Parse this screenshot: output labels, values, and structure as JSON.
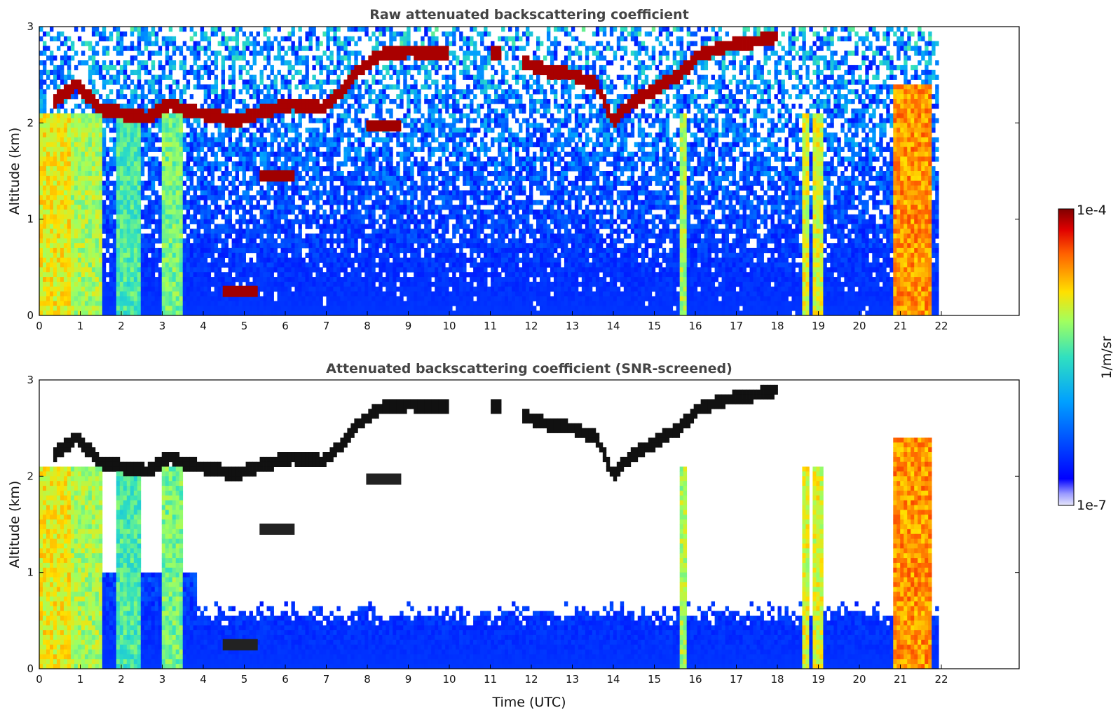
{
  "chart_data": [
    {
      "type": "heatmap",
      "title": "Raw attenuated backscattering coefficient",
      "xlabel": "",
      "ylabel": "Altitude (km)",
      "xlim": [
        0,
        24
      ],
      "ylim": [
        0,
        3
      ],
      "xticks": [
        "0",
        "1",
        "2",
        "3",
        "4",
        "5",
        "6",
        "7",
        "8",
        "9",
        "10",
        "11",
        "12",
        "13",
        "14",
        "15",
        "16",
        "17",
        "18",
        "19",
        "20",
        "21",
        "22"
      ],
      "yticks": [
        "0",
        "1",
        "2",
        "3"
      ],
      "data_end_hour": 21.95,
      "screened": false,
      "cloud_layer": [
        {
          "x": 0.3,
          "y": 2.2
        },
        {
          "x": 0.9,
          "y": 2.4
        },
        {
          "x": 1.5,
          "y": 2.15
        },
        {
          "x": 2.0,
          "y": 2.1
        },
        {
          "x": 2.6,
          "y": 2.05
        },
        {
          "x": 3.2,
          "y": 2.2
        },
        {
          "x": 3.6,
          "y": 2.12
        },
        {
          "x": 4.2,
          "y": 2.08
        },
        {
          "x": 4.8,
          "y": 2.02
        },
        {
          "x": 5.5,
          "y": 2.12
        },
        {
          "x": 6.2,
          "y": 2.2
        },
        {
          "x": 6.9,
          "y": 2.15
        },
        {
          "x": 7.3,
          "y": 2.3
        },
        {
          "x": 7.8,
          "y": 2.55
        },
        {
          "x": 8.3,
          "y": 2.7
        },
        {
          "x": 9.0,
          "y": 2.75
        },
        {
          "x": 9.9,
          "y": 2.72
        },
        {
          "x": 11.2,
          "y": 2.72
        },
        {
          "x": 12.3,
          "y": 2.55
        },
        {
          "x": 13.0,
          "y": 2.5
        },
        {
          "x": 13.6,
          "y": 2.4
        },
        {
          "x": 14.0,
          "y": 2.0
        },
        {
          "x": 14.4,
          "y": 2.2
        },
        {
          "x": 15.0,
          "y": 2.35
        },
        {
          "x": 15.6,
          "y": 2.5
        },
        {
          "x": 16.1,
          "y": 2.7
        },
        {
          "x": 16.8,
          "y": 2.8
        },
        {
          "x": 17.5,
          "y": 2.85
        },
        {
          "x": 18.0,
          "y": 2.9
        }
      ],
      "aerosol_patches": [
        {
          "x": 5.8,
          "y": 1.45
        },
        {
          "x": 4.9,
          "y": 0.25
        },
        {
          "x": 8.4,
          "y": 1.97
        }
      ]
    },
    {
      "type": "heatmap",
      "title": "Attenuated backscattering coefficient (SNR-screened)",
      "xlabel": "Time (UTC)",
      "ylabel": "Altitude (km)",
      "xlim": [
        0,
        24
      ],
      "ylim": [
        0,
        3
      ],
      "xticks": [
        "0",
        "1",
        "2",
        "3",
        "4",
        "5",
        "6",
        "7",
        "8",
        "9",
        "10",
        "11",
        "12",
        "13",
        "14",
        "15",
        "16",
        "17",
        "18",
        "19",
        "20",
        "21",
        "22"
      ],
      "yticks": [
        "0",
        "1",
        "2",
        "3"
      ],
      "data_end_hour": 21.95,
      "screened": true
    }
  ],
  "colorbar": {
    "label": "1/m/sr",
    "top_label": "1e-4",
    "bottom_label": "1e-7",
    "scale": "log",
    "range": [
      1e-07,
      0.0001
    ]
  },
  "colors": {
    "background": "#ffffff",
    "cloud": "#8b0000",
    "title": "#444444"
  }
}
